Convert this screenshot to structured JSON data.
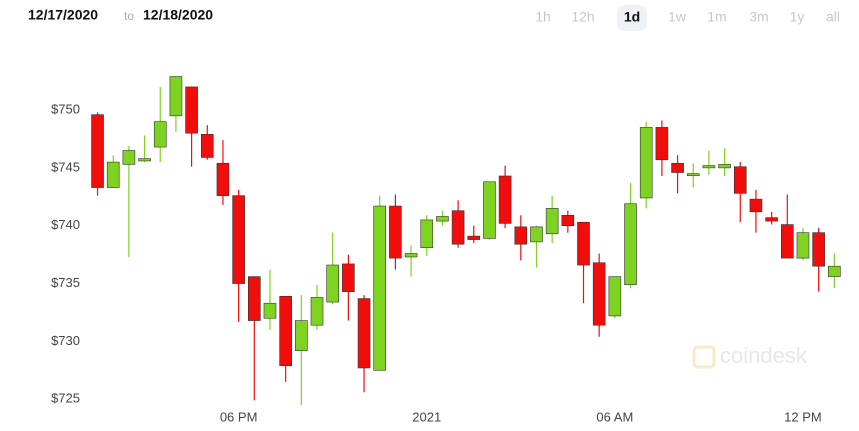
{
  "header": {
    "from": "12/17/2020",
    "separator": "to",
    "to": "12/18/2020",
    "ranges": [
      "1h",
      "12h",
      "1d",
      "1w",
      "1m",
      "3m",
      "1y",
      "all"
    ],
    "selected_range": "1d",
    "watermark": "coindesk"
  },
  "chart_data": {
    "type": "candlestick",
    "up_color": "#7ed321",
    "down_color": "#f20d0d",
    "open": [
      749.6,
      743.3,
      745.3,
      745.6,
      746.8,
      749.5,
      752.0,
      747.9,
      745.4,
      742.6,
      735.6,
      732.0,
      733.9,
      729.2,
      731.4,
      733.4,
      736.7,
      733.7,
      727.5,
      741.7,
      737.3,
      738.1,
      740.4,
      741.3,
      739.1,
      738.9,
      744.3,
      739.9,
      738.6,
      739.3,
      740.9,
      740.3,
      736.8,
      732.2,
      734.9,
      742.4,
      748.5,
      745.4,
      744.4,
      745.0,
      745.0,
      745.1,
      742.3,
      740.7,
      740.1,
      737.2,
      739.4,
      735.6
    ],
    "high": [
      749.8,
      746.1,
      746.9,
      747.8,
      752.0,
      752.9,
      752.0,
      748.7,
      747.4,
      743.1,
      735.6,
      736.2,
      733.9,
      734.0,
      734.9,
      739.4,
      737.5,
      734.0,
      742.6,
      742.7,
      738.3,
      740.9,
      741.3,
      742.2,
      740.0,
      743.8,
      745.2,
      740.9,
      740.0,
      742.6,
      741.3,
      740.3,
      737.6,
      735.6,
      743.7,
      749.0,
      749.1,
      746.1,
      745.4,
      746.5,
      746.7,
      745.5,
      743.1,
      741.2,
      742.7,
      739.8,
      739.8,
      737.6
    ],
    "low": [
      742.6,
      743.3,
      737.3,
      745.5,
      745.5,
      748.1,
      745.1,
      745.7,
      741.8,
      731.7,
      724.9,
      731.0,
      726.5,
      724.5,
      731.0,
      733.2,
      731.8,
      725.6,
      727.5,
      736.2,
      735.6,
      737.4,
      740.0,
      738.1,
      738.5,
      738.8,
      739.8,
      737.0,
      736.4,
      738.5,
      739.4,
      733.3,
      730.4,
      732.0,
      734.6,
      741.5,
      744.3,
      742.8,
      743.3,
      744.4,
      744.3,
      740.3,
      739.4,
      740.1,
      737.2,
      737.0,
      734.3,
      734.6
    ],
    "close": [
      743.3,
      745.5,
      746.5,
      745.8,
      749.0,
      752.9,
      748.0,
      745.9,
      742.6,
      735.0,
      731.8,
      733.3,
      727.9,
      731.8,
      733.8,
      736.6,
      734.3,
      727.7,
      741.7,
      737.2,
      737.6,
      740.5,
      740.8,
      738.4,
      738.8,
      743.8,
      740.2,
      738.4,
      739.9,
      741.5,
      740.0,
      736.6,
      731.4,
      735.6,
      741.9,
      748.5,
      745.7,
      744.6,
      744.5,
      745.2,
      745.3,
      742.8,
      741.2,
      740.4,
      737.2,
      739.4,
      736.5,
      736.5
    ],
    "xlim": [
      -0.8,
      48
    ],
    "xticks": [
      {
        "value": 9,
        "label": "06 PM"
      },
      {
        "value": 21,
        "label": "2021"
      },
      {
        "value": 33,
        "label": "06 AM"
      },
      {
        "value": 45,
        "label": "12 PM"
      }
    ],
    "ylim": [
      724.5,
      754.5
    ],
    "yticks": [
      {
        "value": 725,
        "label": "$725"
      },
      {
        "value": 730,
        "label": "$730"
      },
      {
        "value": 735,
        "label": "$735"
      },
      {
        "value": 740,
        "label": "$740"
      },
      {
        "value": 745,
        "label": "$745"
      },
      {
        "value": 750,
        "label": "$750"
      }
    ]
  }
}
